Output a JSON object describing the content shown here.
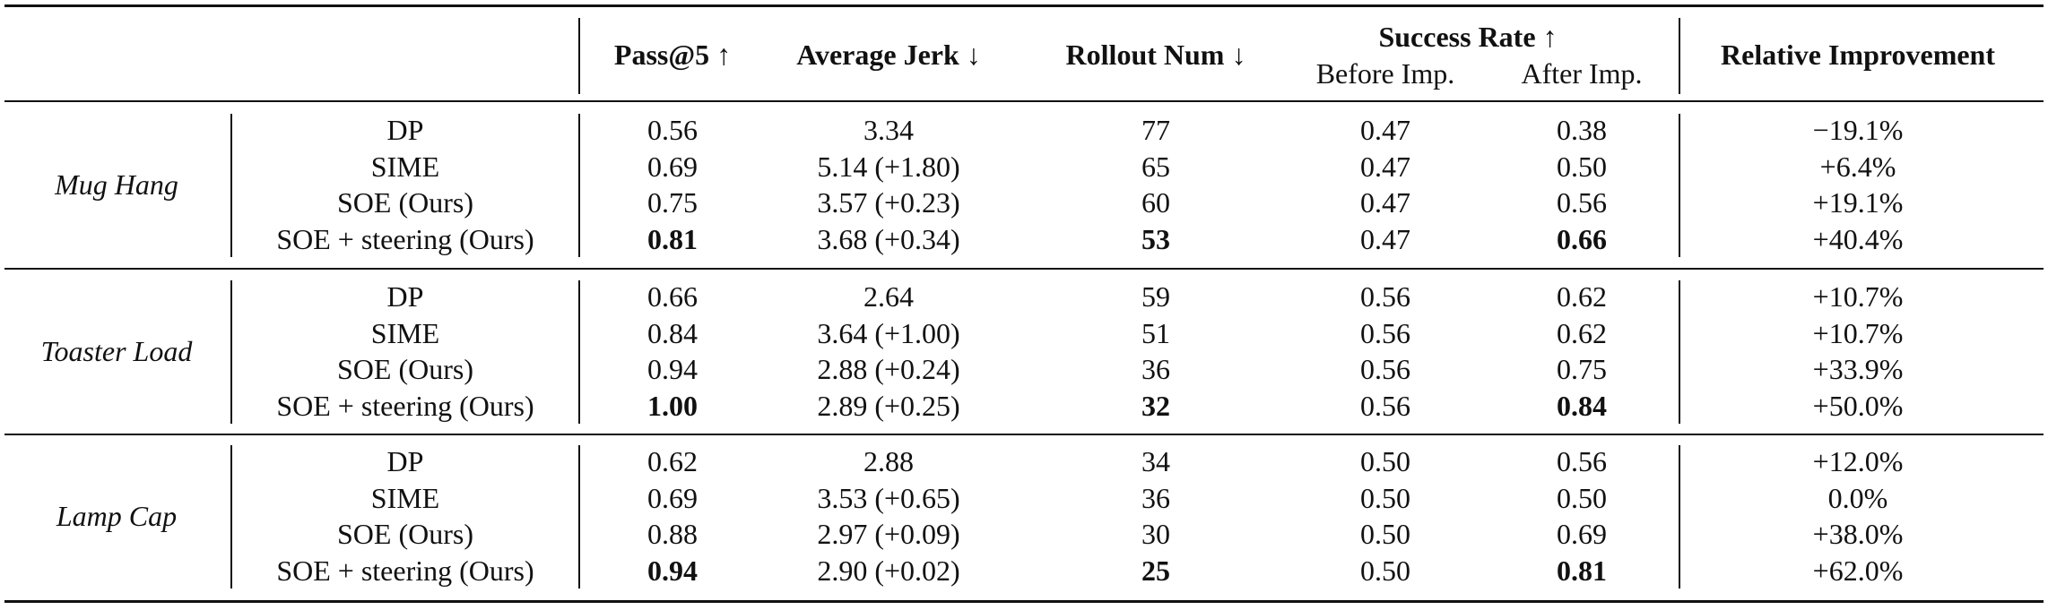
{
  "header": {
    "pass5": "Pass@5 ↑",
    "jerk": "Average Jerk ↓",
    "rollout": "Rollout Num ↓",
    "success": "Success Rate ↑",
    "before": "Before Imp.",
    "after": "After Imp.",
    "relimp": "Relative Improvement"
  },
  "groups": [
    {
      "task": "Mug Hang",
      "rows": [
        {
          "method": "DP",
          "pass5": "0.56",
          "jerk": "3.34",
          "rollout": "77",
          "before": "0.47",
          "after": "0.38",
          "rel": "−19.1%"
        },
        {
          "method": "SIME",
          "pass5": "0.69",
          "jerk": "5.14 (+1.80)",
          "rollout": "65",
          "before": "0.47",
          "after": "0.50",
          "rel": "+6.4%"
        },
        {
          "method": "SOE (Ours)",
          "pass5": "0.75",
          "jerk": "3.57 (+0.23)",
          "rollout": "60",
          "before": "0.47",
          "after": "0.56",
          "rel": "+19.1%"
        },
        {
          "method": "SOE + steering (Ours)",
          "pass5": "0.81",
          "jerk": "3.68 (+0.34)",
          "rollout": "53",
          "before": "0.47",
          "after": "0.66",
          "rel": "+40.4%"
        }
      ]
    },
    {
      "task": "Toaster Load",
      "rows": [
        {
          "method": "DP",
          "pass5": "0.66",
          "jerk": "2.64",
          "rollout": "59",
          "before": "0.56",
          "after": "0.62",
          "rel": "+10.7%"
        },
        {
          "method": "SIME",
          "pass5": "0.84",
          "jerk": "3.64 (+1.00)",
          "rollout": "51",
          "before": "0.56",
          "after": "0.62",
          "rel": "+10.7%"
        },
        {
          "method": "SOE (Ours)",
          "pass5": "0.94",
          "jerk": "2.88 (+0.24)",
          "rollout": "36",
          "before": "0.56",
          "after": "0.75",
          "rel": "+33.9%"
        },
        {
          "method": "SOE + steering (Ours)",
          "pass5": "1.00",
          "jerk": "2.89 (+0.25)",
          "rollout": "32",
          "before": "0.56",
          "after": "0.84",
          "rel": "+50.0%"
        }
      ]
    },
    {
      "task": "Lamp Cap",
      "rows": [
        {
          "method": "DP",
          "pass5": "0.62",
          "jerk": "2.88",
          "rollout": "34",
          "before": "0.50",
          "after": "0.56",
          "rel": "+12.0%"
        },
        {
          "method": "SIME",
          "pass5": "0.69",
          "jerk": "3.53 (+0.65)",
          "rollout": "36",
          "before": "0.50",
          "after": "0.50",
          "rel": "0.0%"
        },
        {
          "method": "SOE (Ours)",
          "pass5": "0.88",
          "jerk": "2.97 (+0.09)",
          "rollout": "30",
          "before": "0.50",
          "after": "0.69",
          "rel": "+38.0%"
        },
        {
          "method": "SOE + steering (Ours)",
          "pass5": "0.94",
          "jerk": "2.90 (+0.02)",
          "rollout": "25",
          "before": "0.50",
          "after": "0.81",
          "rel": "+62.0%"
        }
      ]
    }
  ]
}
